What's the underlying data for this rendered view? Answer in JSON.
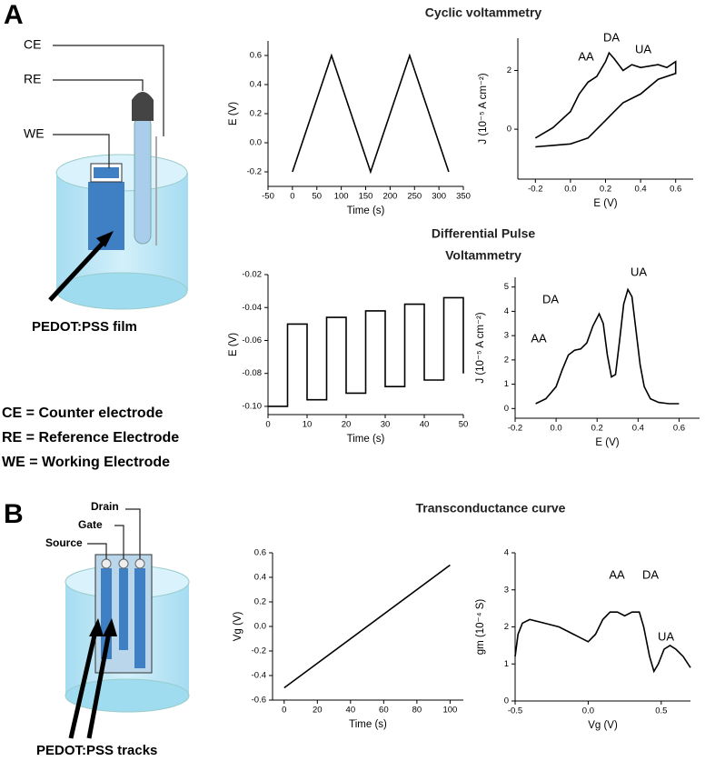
{
  "panel_labels": [
    "A",
    "B"
  ],
  "titles": {
    "cv": "Cyclic voltammetry",
    "dpv": [
      "Differential Pulse",
      "Voltammetry"
    ],
    "transconductance": "Transconductance curve"
  },
  "diagram_a": {
    "electrodes": [
      "CE",
      "RE",
      "WE"
    ],
    "film": "PEDOT:PSS film",
    "definitions": [
      "CE = Counter electrode",
      "RE = Reference Electrode",
      "WE = Working Electrode"
    ]
  },
  "diagram_b": {
    "terminals": [
      "Drain",
      "Gate",
      "Source"
    ],
    "tracks": "PEDOT:PSS tracks"
  },
  "chart_data": [
    {
      "type": "line",
      "xlabel": "Time (s)",
      "ylabel": "E (V)",
      "color": "#000000",
      "x": [
        0,
        80,
        160,
        240,
        320
      ],
      "values": [
        -0.2,
        0.6,
        -0.2,
        0.6,
        -0.2
      ],
      "xlim": [
        -50,
        350
      ],
      "ylim": [
        -0.3,
        0.7
      ],
      "xticks": [
        -50,
        0,
        50,
        100,
        150,
        200,
        250,
        300,
        350
      ],
      "yticks": [
        -0.2,
        {
          "value": 0,
          "label": "0.0"
        },
        0.2,
        0.4,
        0.6
      ],
      "annotations": []
    },
    {
      "type": "line",
      "xlabel": "E (V)",
      "ylabel": "J (10⁻⁵ A cm⁻²)",
      "color": "#000000",
      "x": [
        -0.2,
        -0.1,
        0,
        0.05,
        0.1,
        0.15,
        0.2,
        0.22,
        0.25,
        0.3,
        0.35,
        0.4,
        0.5,
        0.55,
        0.6,
        0.6,
        0.5,
        0.4,
        0.3,
        0.25,
        0.2,
        0.1,
        0,
        -0.1,
        -0.2
      ],
      "values": [
        -0.3,
        0.05,
        0.6,
        1.2,
        1.6,
        1.8,
        2.3,
        2.6,
        2.4,
        2.0,
        2.2,
        2.1,
        2.2,
        2.1,
        2.3,
        1.9,
        1.7,
        1.2,
        0.9,
        0.6,
        0.3,
        -0.3,
        -0.5,
        -0.55,
        -0.6
      ],
      "xlim": [
        -0.3,
        0.7
      ],
      "ylim": [
        -1.7,
        3.1
      ],
      "xticks": [
        -0.2,
        {
          "value": 0,
          "label": "0.0"
        },
        0.2,
        0.4,
        0.6
      ],
      "yticks": [
        0,
        2
      ],
      "annotations": [
        "AA",
        "DA",
        "UA"
      ]
    },
    {
      "type": "line",
      "xlabel": "Time (s)",
      "ylabel": "E (V)",
      "color": "#000000",
      "x": [
        0,
        5,
        5,
        10,
        10,
        15,
        15,
        20,
        20,
        25,
        25,
        30,
        30,
        35,
        35,
        40,
        40,
        45,
        45,
        50,
        50
      ],
      "values": [
        -0.1,
        -0.1,
        -0.05,
        -0.05,
        -0.096,
        -0.096,
        -0.046,
        -0.046,
        -0.092,
        -0.092,
        -0.042,
        -0.042,
        -0.088,
        -0.088,
        -0.038,
        -0.038,
        -0.084,
        -0.084,
        -0.034,
        -0.034,
        -0.08
      ],
      "xlim": [
        0,
        50
      ],
      "ylim": [
        -0.105,
        -0.02
      ],
      "xticks": [
        0,
        10,
        20,
        30,
        40,
        50
      ],
      "yticks": [
        {
          "value": -0.1,
          "label": "-0.10"
        },
        -0.08,
        -0.06,
        -0.04,
        -0.02
      ],
      "annotations": []
    },
    {
      "type": "line",
      "xlabel": "E (V)",
      "ylabel": "J (10⁻⁵ A cm⁻²)",
      "color": "#000000",
      "x": [
        -0.1,
        -0.05,
        0,
        0.03,
        0.06,
        0.09,
        0.12,
        0.15,
        0.18,
        0.21,
        0.23,
        0.25,
        0.27,
        0.29,
        0.31,
        0.33,
        0.35,
        0.37,
        0.39,
        0.41,
        0.43,
        0.46,
        0.5,
        0.55,
        0.6
      ],
      "values": [
        0.2,
        0.4,
        0.9,
        1.6,
        2.2,
        2.4,
        2.45,
        2.7,
        3.4,
        3.9,
        3.5,
        2.2,
        1.3,
        1.4,
        2.8,
        4.3,
        4.9,
        4.6,
        3.2,
        1.8,
        0.9,
        0.4,
        0.25,
        0.2,
        0.2
      ],
      "xlim": [
        -0.2,
        0.7
      ],
      "ylim": [
        -0.4,
        5.4
      ],
      "xticks": [
        -0.2,
        {
          "value": 0,
          "label": "0.0"
        },
        0.2,
        0.4,
        0.6
      ],
      "yticks": [
        0,
        1,
        2,
        3,
        4,
        5
      ],
      "annotations": [
        "AA",
        "DA",
        "UA"
      ]
    },
    {
      "type": "line",
      "xlabel": "Time (s)",
      "ylabel": "Vg (V)",
      "color": "#000000",
      "x": [
        0,
        100
      ],
      "values": [
        -0.5,
        0.5
      ],
      "xlim": [
        -7,
        108
      ],
      "ylim": [
        -0.6,
        0.6
      ],
      "xticks": [
        0,
        20,
        40,
        60,
        80,
        100
      ],
      "yticks": [
        -0.6,
        -0.4,
        -0.2,
        {
          "value": 0,
          "label": "0.0"
        },
        0.2,
        0.4,
        0.6
      ],
      "annotations": []
    },
    {
      "type": "line",
      "xlabel": "Vg (V)",
      "ylabel": "gm (10⁻⁴ S)",
      "color": "#000000",
      "x": [
        -0.5,
        -0.48,
        -0.45,
        -0.4,
        -0.3,
        -0.2,
        -0.1,
        0,
        0.05,
        0.1,
        0.15,
        0.2,
        0.25,
        0.3,
        0.35,
        0.38,
        0.42,
        0.45,
        0.48,
        0.52,
        0.56,
        0.6,
        0.65,
        0.7
      ],
      "values": [
        1.2,
        1.8,
        2.1,
        2.2,
        2.1,
        2.0,
        1.8,
        1.6,
        1.8,
        2.2,
        2.4,
        2.4,
        2.3,
        2.4,
        2.4,
        2.0,
        1.2,
        0.8,
        1.0,
        1.4,
        1.5,
        1.4,
        1.2,
        0.9
      ],
      "xlim": [
        -0.5,
        0.7
      ],
      "ylim": [
        0,
        4
      ],
      "xticks": [
        -0.5,
        {
          "value": 0,
          "label": "0.0"
        },
        0.5
      ],
      "yticks": [
        0,
        1,
        2,
        3,
        4
      ],
      "annotations": [
        "AA",
        "DA",
        "UA"
      ]
    }
  ]
}
